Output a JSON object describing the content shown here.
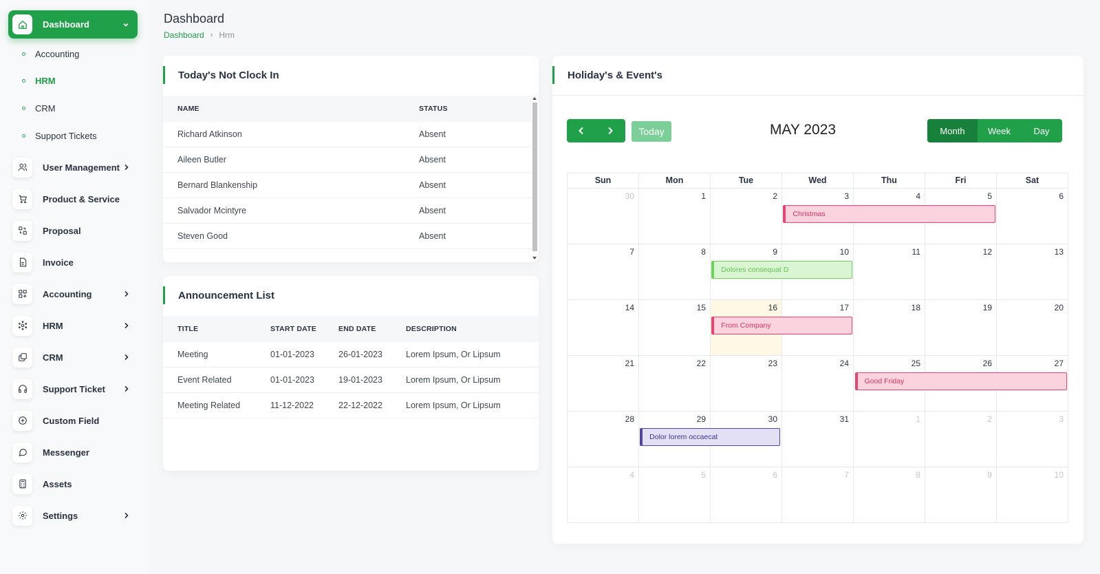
{
  "sidebar": {
    "dashboard": "Dashboard",
    "sub_items": [
      {
        "label": "Accounting",
        "active": false
      },
      {
        "label": "HRM",
        "active": true
      },
      {
        "label": "CRM",
        "active": false
      },
      {
        "label": "Support Tickets",
        "active": false
      }
    ],
    "items": [
      {
        "label": "User Management",
        "icon": "users-icon",
        "chevron": true
      },
      {
        "label": "Product & Service",
        "icon": "cart-icon",
        "chevron": false
      },
      {
        "label": "Proposal",
        "icon": "proposal-icon",
        "chevron": false
      },
      {
        "label": "Invoice",
        "icon": "file-icon",
        "chevron": false
      },
      {
        "label": "Accounting",
        "icon": "grid-plus-icon",
        "chevron": true
      },
      {
        "label": "HRM",
        "icon": "hrm-icon",
        "chevron": true
      },
      {
        "label": "CRM",
        "icon": "layers-icon",
        "chevron": true
      },
      {
        "label": "Support Ticket",
        "icon": "headphones-icon",
        "chevron": true
      },
      {
        "label": "Custom Field",
        "icon": "circle-plus-icon",
        "chevron": false
      },
      {
        "label": "Messenger",
        "icon": "chat-icon",
        "chevron": false
      },
      {
        "label": "Assets",
        "icon": "calculator-icon",
        "chevron": false
      },
      {
        "label": "Settings",
        "icon": "gear-icon",
        "chevron": true
      }
    ]
  },
  "header": {
    "title": "Dashboard",
    "breadcrumb": {
      "link": "Dashboard",
      "current": "Hrm"
    }
  },
  "clock_in": {
    "title": "Today's Not Clock In",
    "columns": [
      "NAME",
      "STATUS"
    ],
    "rows": [
      {
        "name": "Richard Atkinson",
        "status": "Absent"
      },
      {
        "name": "Aileen Butler",
        "status": "Absent"
      },
      {
        "name": "Bernard Blankenship",
        "status": "Absent"
      },
      {
        "name": "Salvador Mcintyre",
        "status": "Absent"
      },
      {
        "name": "Steven Good",
        "status": "Absent"
      }
    ]
  },
  "announcements": {
    "title": "Announcement List",
    "columns": [
      "TITLE",
      "START DATE",
      "END DATE",
      "DESCRIPTION"
    ],
    "rows": [
      {
        "title": "Meeting",
        "start": "01-01-2023",
        "end": "26-01-2023",
        "desc": "Lorem Ipsum, Or Lipsum"
      },
      {
        "title": "Event Related",
        "start": "01-01-2023",
        "end": "19-01-2023",
        "desc": "Lorem Ipsum, Or Lipsum"
      },
      {
        "title": "Meeting Related",
        "start": "11-12-2022",
        "end": "22-12-2022",
        "desc": "Lorem Ipsum, Or Lipsum"
      }
    ]
  },
  "calendar": {
    "title": "Holiday's & Event's",
    "month_title": "MAY 2023",
    "today_label": "Today",
    "views": [
      {
        "label": "Month",
        "active": true
      },
      {
        "label": "Week",
        "active": false
      },
      {
        "label": "Day",
        "active": false
      }
    ],
    "weekdays": [
      "Sun",
      "Mon",
      "Tue",
      "Wed",
      "Thu",
      "Fri",
      "Sat"
    ],
    "weeks": [
      [
        {
          "d": "30",
          "o": true
        },
        {
          "d": "1"
        },
        {
          "d": "2"
        },
        {
          "d": "3"
        },
        {
          "d": "4"
        },
        {
          "d": "5"
        },
        {
          "d": "6"
        }
      ],
      [
        {
          "d": "7"
        },
        {
          "d": "8"
        },
        {
          "d": "9"
        },
        {
          "d": "10"
        },
        {
          "d": "11"
        },
        {
          "d": "12"
        },
        {
          "d": "13"
        }
      ],
      [
        {
          "d": "14"
        },
        {
          "d": "15"
        },
        {
          "d": "16",
          "today": true
        },
        {
          "d": "17"
        },
        {
          "d": "18"
        },
        {
          "d": "19"
        },
        {
          "d": "20"
        }
      ],
      [
        {
          "d": "21"
        },
        {
          "d": "22"
        },
        {
          "d": "23"
        },
        {
          "d": "24"
        },
        {
          "d": "25"
        },
        {
          "d": "26"
        },
        {
          "d": "27"
        }
      ],
      [
        {
          "d": "28"
        },
        {
          "d": "29"
        },
        {
          "d": "30"
        },
        {
          "d": "31"
        },
        {
          "d": "1",
          "o": true
        },
        {
          "d": "2",
          "o": true
        },
        {
          "d": "3",
          "o": true
        }
      ],
      [
        {
          "d": "4",
          "o": true
        },
        {
          "d": "5",
          "o": true
        },
        {
          "d": "6",
          "o": true
        },
        {
          "d": "7",
          "o": true
        },
        {
          "d": "8",
          "o": true
        },
        {
          "d": "9",
          "o": true
        },
        {
          "d": "10",
          "o": true
        }
      ]
    ],
    "events": [
      {
        "title": "Christmas",
        "week": 0,
        "start_col": 3,
        "span": 3,
        "bg": "#fbd3df",
        "border": "#e9446f",
        "text": "#d8355f"
      },
      {
        "title": "Dolores consequat D",
        "week": 1,
        "start_col": 2,
        "span": 2,
        "bg": "#d9f5d2",
        "border": "#6fd25a",
        "text": "#63c34f"
      },
      {
        "title": "From Company",
        "week": 2,
        "start_col": 2,
        "span": 2,
        "bg": "#fbd3df",
        "border": "#e9446f",
        "text": "#d8355f"
      },
      {
        "title": "Good Friday",
        "week": 3,
        "start_col": 4,
        "span": 3,
        "bg": "#fbd3df",
        "border": "#e9446f",
        "text": "#d8355f"
      },
      {
        "title": "Dolor lorem occaecat",
        "week": 4,
        "start_col": 1,
        "span": 2,
        "bg": "#e3e0f6",
        "border": "#51459d",
        "text": "#3e3487"
      }
    ]
  },
  "colors": {
    "primary": "#1fa049",
    "primary_dark": "#17813b",
    "today_bg": "#fff8e5"
  }
}
